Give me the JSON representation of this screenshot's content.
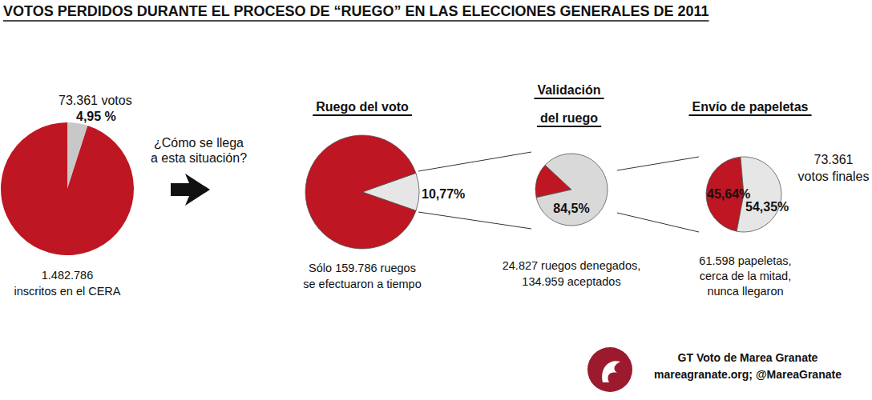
{
  "title": "VOTOS PERDIDOS DURANTE EL PROCESO DE “RUEGO” EN LAS ELECCIONES GENERALES DE 2011",
  "transition_text": [
    "¿Cómo se llega",
    "a esta situación?"
  ],
  "chart_data": [
    {
      "type": "pie",
      "values": [
        4.95,
        95.05
      ],
      "value_labels": [
        "4,95 %",
        null
      ],
      "colors": [
        "#c8c8c8",
        "#be1622"
      ],
      "data_labels": true,
      "annotations": [
        "73.361 votos"
      ],
      "caption": [
        "1.482.786",
        "inscritos en el CERA"
      ]
    },
    {
      "type": "pie",
      "title": [
        "Ruego del voto"
      ],
      "values": [
        10.77,
        89.23
      ],
      "value_labels": [
        "10,77%",
        null
      ],
      "colors": [
        "#e6e6e6",
        "#be1622"
      ],
      "data_labels": true,
      "caption": [
        "Sólo 159.786 ruegos",
        "se efectuaron a tiempo"
      ]
    },
    {
      "type": "pie",
      "title": [
        "Validación",
        "del ruego"
      ],
      "values": [
        15.5,
        84.5
      ],
      "value_labels": [
        null,
        "84,5%"
      ],
      "colors": [
        "#be1622",
        "#d9d9d9"
      ],
      "data_labels": true,
      "caption": [
        "24.827 ruegos denegados,",
        "134.959 aceptados"
      ]
    },
    {
      "type": "pie",
      "title": [
        "Envío de papeletas"
      ],
      "values": [
        45.64,
        54.35
      ],
      "value_labels": [
        "45,64%",
        "54,35%"
      ],
      "colors": [
        "#be1622",
        "#e6e6e6"
      ],
      "data_labels": true,
      "annotations": [
        "73.361",
        "votos finales"
      ],
      "caption": [
        "61.598 papeletas,",
        "cerca de la mitad,",
        "nunca llegaron"
      ]
    }
  ],
  "footer": [
    "GT Voto de Marea Granate",
    "mareagranate.org; @MareaGranate"
  ]
}
